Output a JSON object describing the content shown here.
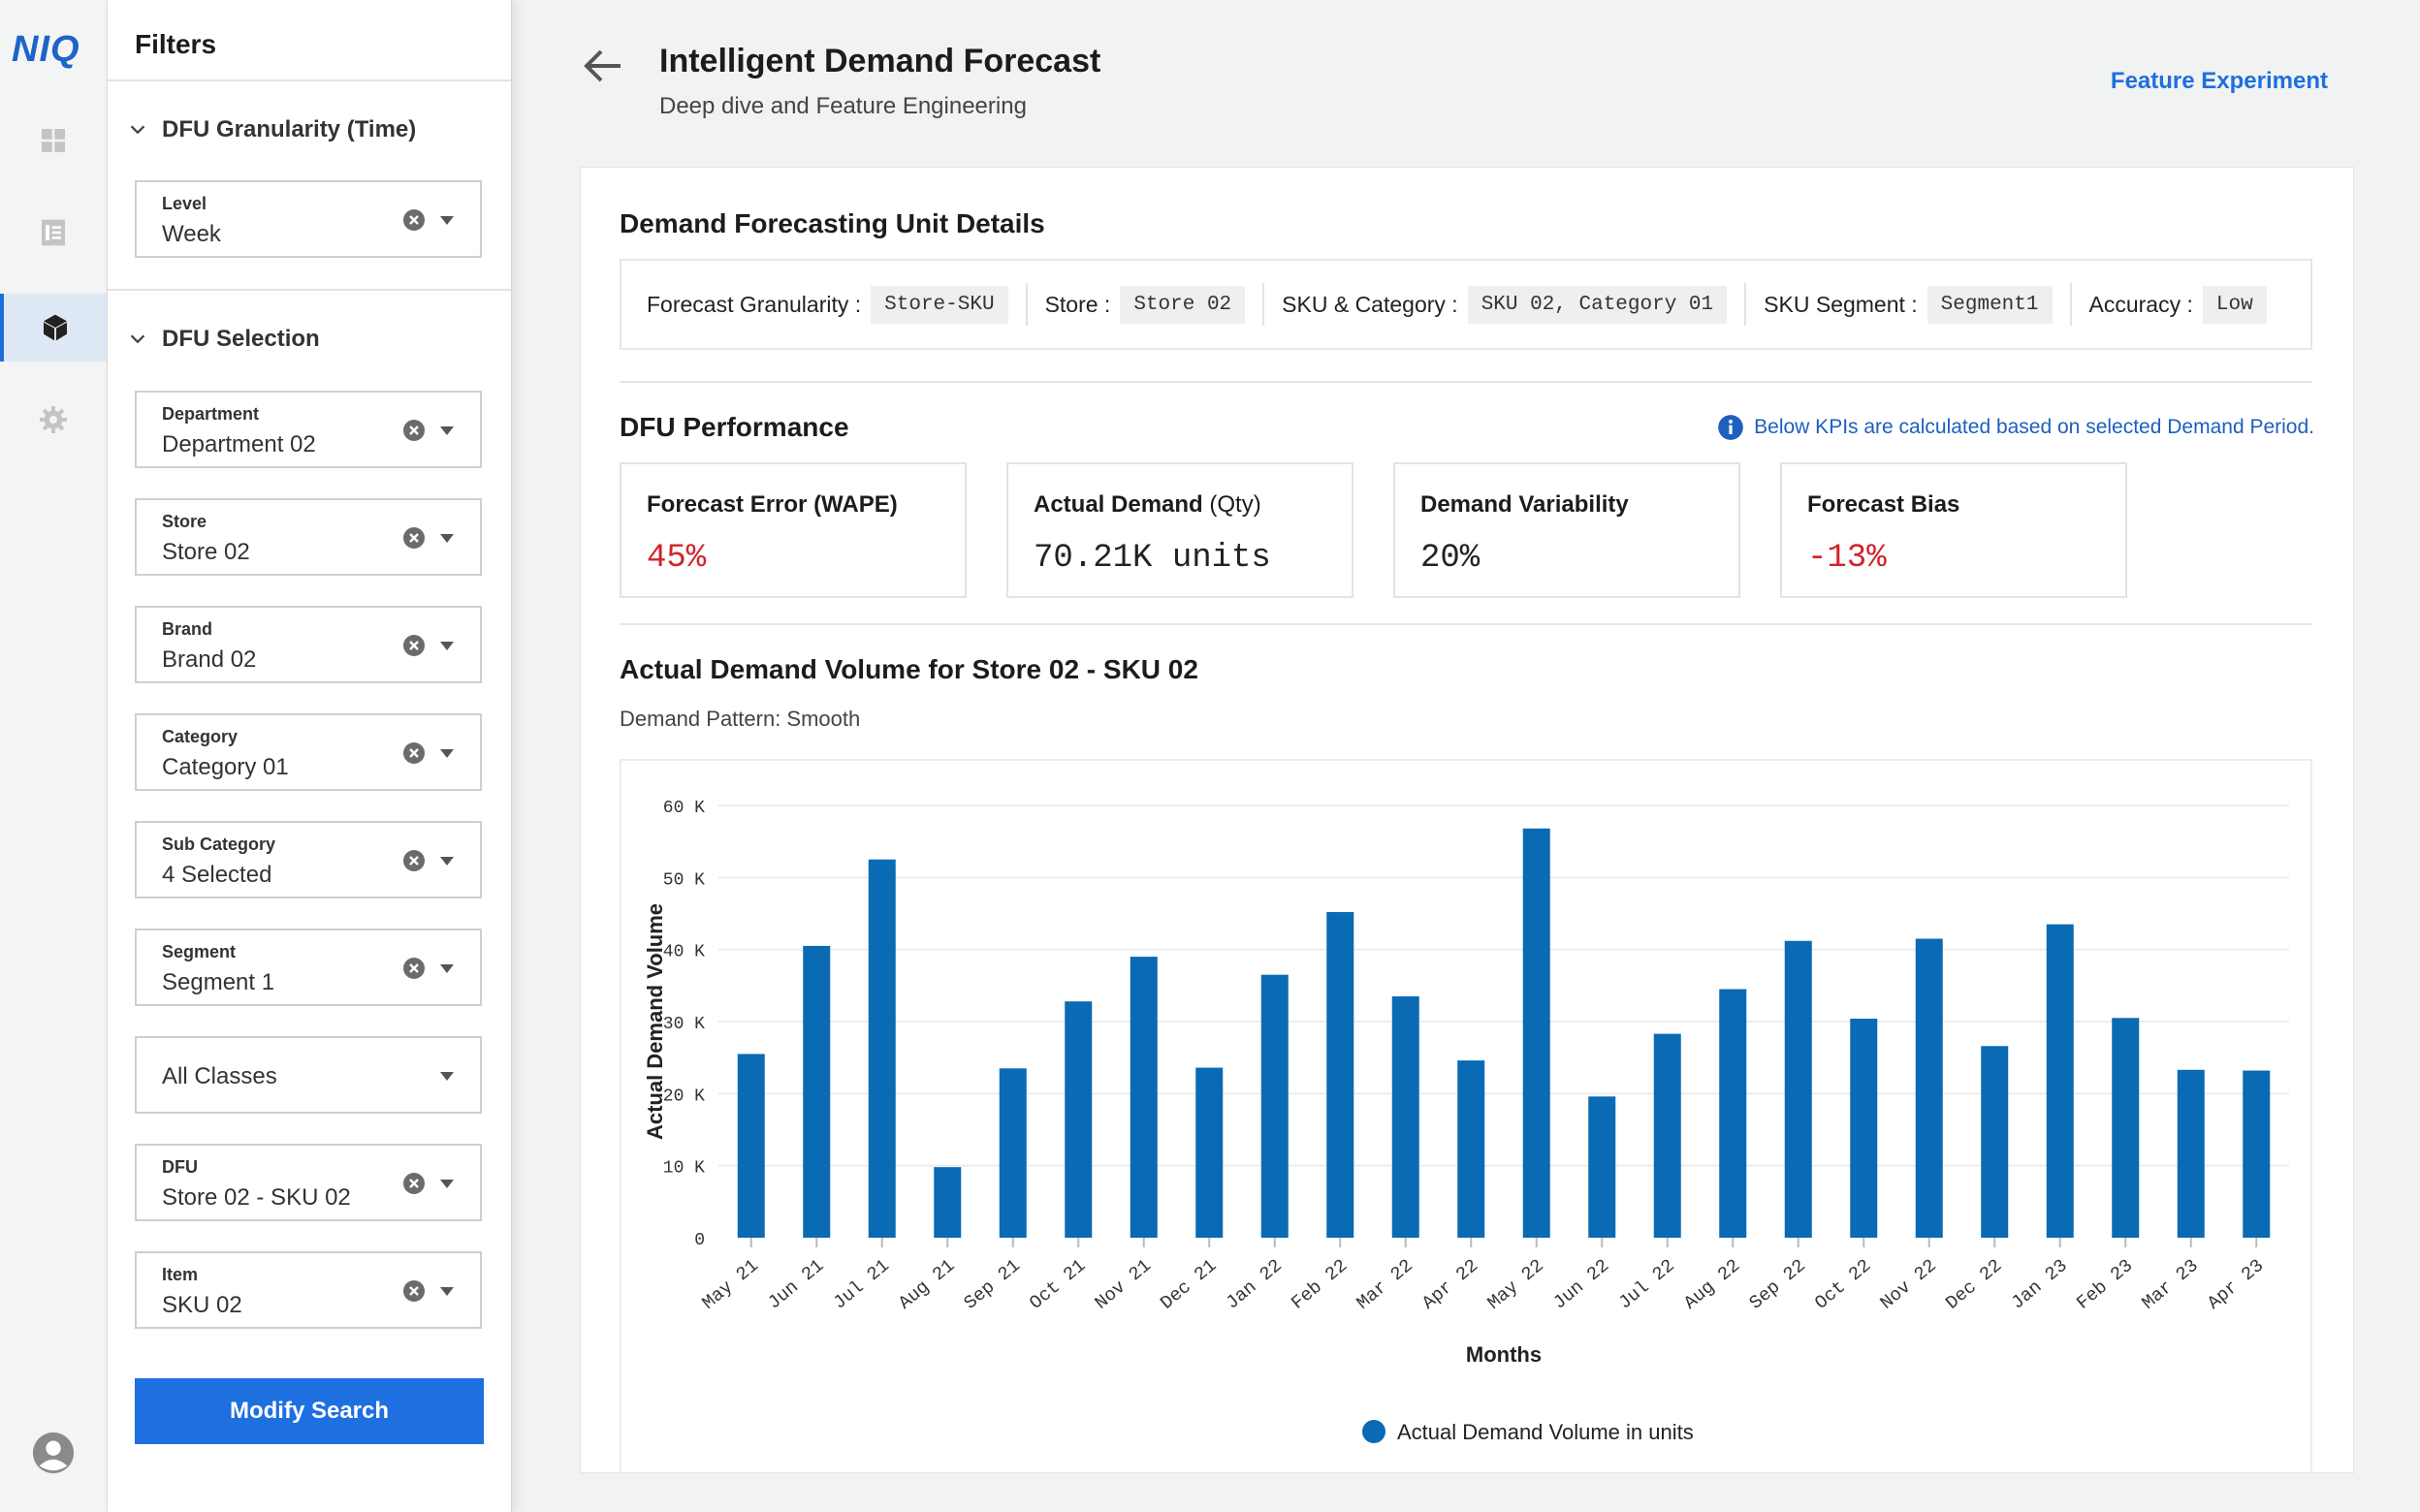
{
  "brand": "NIQ",
  "rail": {
    "items": [
      {
        "icon": "dashboard-grid-icon"
      },
      {
        "icon": "report-document-icon"
      },
      {
        "icon": "cube-icon",
        "active": true
      },
      {
        "icon": "gear-icon"
      }
    ],
    "bottom_icon": "user-avatar-icon"
  },
  "filters": {
    "title": "Filters",
    "time_section": {
      "title": "DFU Granularity (Time)",
      "fields": [
        {
          "label": "Level",
          "value": "Week"
        }
      ]
    },
    "selection_section": {
      "title": "DFU Selection",
      "fields": [
        {
          "label": "Department",
          "value": "Department 02"
        },
        {
          "label": "Store",
          "value": "Store 02"
        },
        {
          "label": "Brand",
          "value": "Brand 02"
        },
        {
          "label": "Category",
          "value": "Category 01"
        },
        {
          "label": "Sub Category",
          "value": "4 Selected"
        },
        {
          "label": "Segment",
          "value": "Segment 1"
        },
        {
          "label": "",
          "value": "All Classes"
        },
        {
          "label": "DFU",
          "value": "Store 02 - SKU 02"
        },
        {
          "label": "Item",
          "value": "SKU 02"
        }
      ]
    },
    "modify_button": "Modify Search"
  },
  "header": {
    "title": "Intelligent Demand Forecast",
    "subtitle": "Deep dive and Feature Engineering",
    "link": "Feature Experiment"
  },
  "details": {
    "title": "Demand Forecasting Unit Details",
    "items": [
      {
        "label": "Forecast Granularity :",
        "value": "Store-SKU"
      },
      {
        "label": "Store :",
        "value": "Store 02"
      },
      {
        "label": "SKU & Category :",
        "value": "SKU 02, Category 01"
      },
      {
        "label": "SKU Segment :",
        "value": "Segment1"
      },
      {
        "label": "Accuracy :",
        "value": "Low"
      }
    ]
  },
  "performance": {
    "title": "DFU Performance",
    "note": "Below KPIs are calculated based on selected Demand Period.",
    "kpis": [
      {
        "title": "Forecast Error (WAPE)",
        "unit": "",
        "value": "45%",
        "color": "#d0232a"
      },
      {
        "title": "Actual Demand",
        "unit": "(Qty)",
        "value": "70.21K units",
        "color": "#222222"
      },
      {
        "title": "Demand Variability",
        "unit": "",
        "value": "20%",
        "color": "#222222"
      },
      {
        "title": "Forecast Bias",
        "unit": "",
        "value": "-13%",
        "color": "#d0232a"
      }
    ]
  },
  "chart": {
    "title": "Actual Demand Volume for Store 02 - SKU 02",
    "subtitle": "Demand Pattern: Smooth"
  },
  "chart_data": {
    "type": "bar",
    "categories": [
      "May 21",
      "Jun 21",
      "Jul 21",
      "Aug 21",
      "Sep 21",
      "Oct 21",
      "Nov 21",
      "Dec 21",
      "Jan 22",
      "Feb 22",
      "Mar 22",
      "Apr 22",
      "May 22",
      "Jun 22",
      "Jul 22",
      "Aug 22",
      "Sep 22",
      "Oct 22",
      "Nov 22",
      "Dec 22",
      "Jan 23",
      "Feb 23",
      "Mar 23",
      "Apr 23"
    ],
    "series": [
      {
        "name": "Actual Demand Volume in units",
        "color": "#0a6ab4",
        "values": [
          25500,
          40500,
          52500,
          9800,
          23500,
          32800,
          39000,
          23600,
          36500,
          45200,
          33500,
          24600,
          56800,
          19600,
          28300,
          34500,
          41200,
          30400,
          41500,
          26600,
          43500,
          30500,
          23300,
          23200
        ]
      }
    ],
    "xlabel": "Months",
    "ylabel": "Actual Demand Volume",
    "ylim": [
      0,
      60000
    ],
    "yticks": [
      "0",
      "10 K",
      "20 K",
      "30 K",
      "40 K",
      "50 K",
      "60 K"
    ],
    "grid": true,
    "legend_position": "bottom"
  }
}
